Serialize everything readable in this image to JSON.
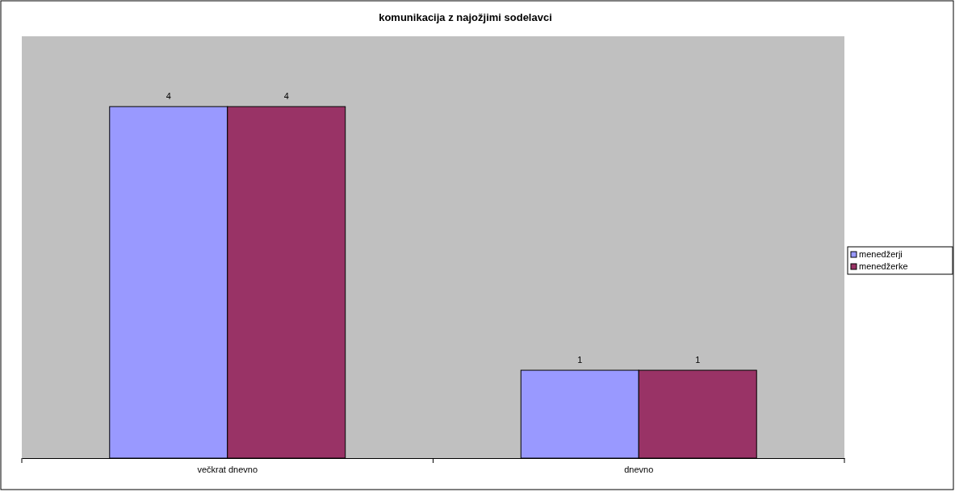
{
  "chart_data": {
    "type": "bar",
    "title": "komunikacija z najožjimi sodelavci",
    "categories": [
      "večkrat dnevno",
      "dnevno"
    ],
    "series": [
      {
        "name": "menedžerji",
        "color": "#9999ff",
        "values": [
          4,
          1
        ]
      },
      {
        "name": "menedžerke",
        "color": "#993366",
        "values": [
          4,
          1
        ]
      }
    ],
    "ylim": [
      0,
      4.8
    ],
    "data_labels": true,
    "legend": "right"
  }
}
